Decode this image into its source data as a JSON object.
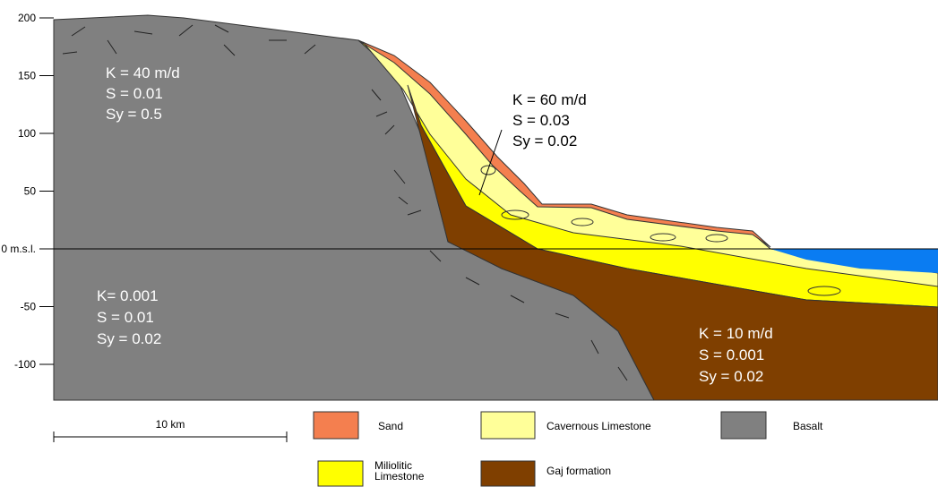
{
  "axis": {
    "ticks": [
      200,
      150,
      100,
      50,
      {
        "value": 0,
        "label": "0 m.s.l."
      },
      -50,
      -100
    ]
  },
  "zones": [
    {
      "lines": [
        "K = 40 m/d",
        "S = 0.01",
        "Sy = 0.5"
      ]
    },
    {
      "lines": [
        "K = 60 m/d",
        "S = 0.03",
        "Sy = 0.02"
      ]
    },
    {
      "lines": [
        "K= 0.001",
        "S = 0.01",
        "Sy = 0.02"
      ]
    },
    {
      "lines": [
        "K = 10 m/d",
        "S = 0.001",
        "Sy = 0.02"
      ]
    }
  ],
  "scale_bar": {
    "label": "10 km"
  },
  "legend": [
    {
      "label": "Sand"
    },
    {
      "label": "Cavernous  Limestone"
    },
    {
      "label": "Basalt"
    },
    {
      "label": "Miliolitic\nLimestone"
    },
    {
      "label": "Gaj formation"
    }
  ]
}
